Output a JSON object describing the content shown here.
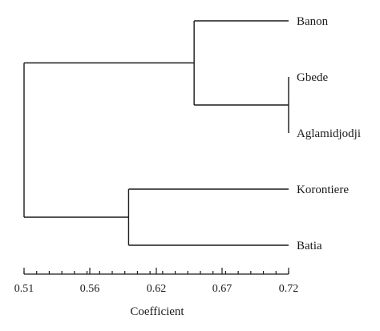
{
  "chart_data": {
    "type": "dendrogram",
    "xlabel": "Coefficient",
    "xlim": [
      0.51,
      0.72
    ],
    "leaves": [
      "Banon",
      "Gbede",
      "Aglamidjodji",
      "Korontiere",
      "Batia"
    ],
    "merges": [
      {
        "id": "gbede_aglam",
        "children": [
          "Gbede",
          "Aglamidjodji"
        ],
        "height": 0.72
      },
      {
        "id": "banon_group",
        "children": [
          "Banon",
          "gbede_aglam"
        ],
        "height": 0.645
      },
      {
        "id": "kor_batia",
        "children": [
          "Korontiere",
          "Batia"
        ],
        "height": 0.593
      },
      {
        "id": "root",
        "children": [
          "banon_group",
          "kor_batia"
        ],
        "height": 0.51
      }
    ],
    "major_ticks": [
      0.51,
      0.56,
      0.62,
      0.67,
      0.72
    ],
    "tick_labels": [
      "0.51",
      "0.56",
      "0.62",
      "0.67",
      "0.72"
    ],
    "minor_tick_step": 0.01
  }
}
